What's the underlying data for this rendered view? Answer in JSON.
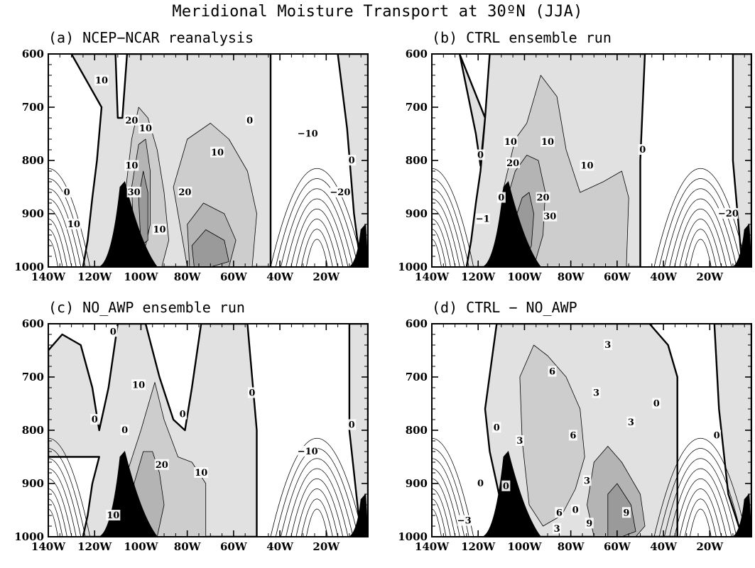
{
  "title": "Meridional Moisture Transport at 30ºN (JJA)",
  "chart_data": [
    {
      "type": "heatmap",
      "panel": "a",
      "title": "(a) NCEP−NCAR reanalysis",
      "x_ticks": [
        "140W",
        "120W",
        "100W",
        "80W",
        "60W",
        "40W",
        "20W"
      ],
      "y_ticks": [
        "600",
        "700",
        "800",
        "900",
        "1000"
      ],
      "xlim": [
        -140,
        -2
      ],
      "ylim": [
        1000,
        600
      ],
      "shaded_regions": [
        {
          "name": "positive-band-west",
          "level": 0,
          "x": [
            -130,
            -111,
            -110,
            -108,
            -106,
            -86,
            -44,
            -44,
            -125,
            -123,
            -121,
            -119,
            -117
          ],
          "y": [
            600,
            600,
            720,
            720,
            600,
            600,
            600,
            1000,
            1000,
            950,
            870,
            800,
            700
          ]
        },
        {
          "name": "core-1",
          "level": 1,
          "x": [
            -107,
            -104,
            -101,
            -97,
            -93,
            -90,
            -88,
            -91,
            -96,
            -101,
            -105
          ],
          "y": [
            870,
            760,
            700,
            720,
            780,
            860,
            950,
            1000,
            1000,
            1000,
            960
          ]
        },
        {
          "name": "core-2",
          "level": 2,
          "x": [
            -104,
            -101,
            -98,
            -96,
            -96,
            -99,
            -103
          ],
          "y": [
            850,
            770,
            760,
            820,
            920,
            980,
            960
          ]
        },
        {
          "name": "core-3",
          "level": 3,
          "x": [
            -101,
            -99,
            -97,
            -97,
            -100
          ],
          "y": [
            870,
            820,
            860,
            950,
            960
          ]
        },
        {
          "name": "lobe-1",
          "level": 1,
          "x": [
            -86,
            -80,
            -70,
            -62,
            -54,
            -50,
            -52,
            -66,
            -80
          ],
          "y": [
            850,
            760,
            730,
            760,
            820,
            900,
            1000,
            1000,
            1000
          ]
        },
        {
          "name": "lobe-2",
          "level": 2,
          "x": [
            -80,
            -73,
            -64,
            -59,
            -62,
            -72,
            -79
          ],
          "y": [
            920,
            880,
            900,
            950,
            1000,
            1000,
            1000
          ]
        },
        {
          "name": "lobe-3",
          "level": 3,
          "x": [
            -78,
            -72,
            -64,
            -62,
            -70,
            -77
          ],
          "y": [
            960,
            930,
            950,
            990,
            1000,
            1000
          ]
        },
        {
          "name": "positive-band-east",
          "level": 0,
          "x": [
            -15,
            -8,
            -4,
            -2,
            -2,
            -5,
            -8,
            -11
          ],
          "y": [
            600,
            600,
            600,
            600,
            1000,
            1000,
            900,
            740
          ]
        }
      ],
      "contour_labels": [
        {
          "text": "10",
          "x": -117,
          "y": 650
        },
        {
          "text": "20",
          "x": -104,
          "y": 725
        },
        {
          "text": "10",
          "x": -98,
          "y": 740
        },
        {
          "text": "10",
          "x": -104,
          "y": 810
        },
        {
          "text": "30",
          "x": -103,
          "y": 860
        },
        {
          "text": "10",
          "x": -92,
          "y": 930
        },
        {
          "text": "20",
          "x": -81,
          "y": 860
        },
        {
          "text": "10",
          "x": -67,
          "y": 785
        },
        {
          "text": "0",
          "x": -132,
          "y": 860
        },
        {
          "text": "10",
          "x": -129,
          "y": 920
        },
        {
          "text": "0",
          "x": -53,
          "y": 725
        },
        {
          "text": "−10",
          "x": -28,
          "y": 750
        },
        {
          "text": "−20",
          "x": -14,
          "y": 860
        },
        {
          "text": "0",
          "x": -9,
          "y": 800
        }
      ],
      "terrain": [
        {
          "x_range": [
            -118,
            -93
          ],
          "peak_x": -107,
          "peak_y": 840
        },
        {
          "x_range": [
            -10,
            -2
          ],
          "peak_x": -3,
          "peak_y": 920
        }
      ]
    },
    {
      "type": "heatmap",
      "panel": "b",
      "title": "(b) CTRL ensemble run",
      "x_ticks": [
        "140W",
        "120W",
        "100W",
        "80W",
        "60W",
        "40W",
        "20W"
      ],
      "y_ticks": [
        "600",
        "700",
        "800",
        "900",
        "1000"
      ],
      "xlim": [
        -140,
        -2
      ],
      "ylim": [
        1000,
        600
      ],
      "shaded_regions": [
        {
          "name": "positive-band-west",
          "level": 0,
          "x": [
            -128,
            -121,
            -119,
            -117,
            -115,
            -113,
            -112,
            -48,
            -50,
            -50,
            -125,
            -123,
            -121,
            -119,
            -117
          ],
          "y": [
            600,
            750,
            810,
            720,
            600,
            600,
            600,
            600,
            800,
            1000,
            1000,
            950,
            880,
            820,
            720
          ]
        },
        {
          "name": "core-1",
          "level": 1,
          "x": [
            -110,
            -104,
            -99,
            -93,
            -86,
            -82,
            -76,
            -66,
            -58,
            -55,
            -56,
            -70,
            -85,
            -95,
            -106
          ],
          "y": [
            870,
            760,
            730,
            640,
            680,
            780,
            860,
            840,
            820,
            870,
            1000,
            1000,
            1000,
            1000,
            980
          ]
        },
        {
          "name": "core-2",
          "level": 2,
          "x": [
            -108,
            -104,
            -99,
            -94,
            -91,
            -92,
            -96,
            -101,
            -106
          ],
          "y": [
            880,
            820,
            790,
            800,
            860,
            940,
            1000,
            1000,
            980
          ]
        },
        {
          "name": "core-3",
          "level": 3,
          "x": [
            -104,
            -101,
            -98,
            -96,
            -97,
            -100,
            -103
          ],
          "y": [
            910,
            870,
            860,
            900,
            960,
            990,
            980
          ]
        },
        {
          "name": "positive-band-east",
          "level": 0,
          "x": [
            -10,
            -5,
            -2,
            -2,
            -6,
            -10
          ],
          "y": [
            600,
            600,
            600,
            1000,
            1000,
            800
          ]
        }
      ],
      "contour_labels": [
        {
          "text": "0",
          "x": -119,
          "y": 790
        },
        {
          "text": "10",
          "x": -106,
          "y": 765
        },
        {
          "text": "20",
          "x": -105,
          "y": 805
        },
        {
          "text": "10",
          "x": -90,
          "y": 765
        },
        {
          "text": "10",
          "x": -73,
          "y": 810
        },
        {
          "text": "20",
          "x": -92,
          "y": 870
        },
        {
          "text": "30",
          "x": -89,
          "y": 905
        },
        {
          "text": "0",
          "x": -110,
          "y": 870
        },
        {
          "text": "−1",
          "x": -118,
          "y": 910
        },
        {
          "text": "0",
          "x": -49,
          "y": 780
        },
        {
          "text": "−20",
          "x": -12,
          "y": 900
        }
      ],
      "terrain": [
        {
          "x_range": [
            -118,
            -93
          ],
          "peak_x": -107,
          "peak_y": 840
        },
        {
          "x_range": [
            -10,
            -2
          ],
          "peak_x": -3,
          "peak_y": 920
        }
      ]
    },
    {
      "type": "heatmap",
      "panel": "c",
      "title": "(c) NO_AWP ensemble run",
      "x_ticks": [
        "140W",
        "120W",
        "100W",
        "80W",
        "60W",
        "40W",
        "20W"
      ],
      "y_ticks": [
        "600",
        "700",
        "800",
        "900",
        "1000"
      ],
      "xlim": [
        -140,
        -2
      ],
      "ylim": [
        1000,
        600
      ],
      "shaded_regions": [
        {
          "name": "positive-band-west",
          "level": 0,
          "x": [
            -140,
            -134,
            -126,
            -121,
            -118,
            -114,
            -110,
            -104,
            -98,
            -92,
            -86,
            -81,
            -78,
            -74,
            -66,
            -54,
            -50,
            -50,
            -125,
            -123,
            -121,
            -118,
            -140
          ],
          "y": [
            650,
            620,
            640,
            720,
            800,
            720,
            600,
            600,
            600,
            700,
            780,
            800,
            720,
            600,
            600,
            600,
            800,
            1000,
            1000,
            960,
            900,
            850,
            850
          ]
        },
        {
          "name": "core-1",
          "level": 1,
          "x": [
            -106,
            -100,
            -94,
            -90,
            -84,
            -78,
            -72,
            -72,
            -76,
            -84,
            -92,
            -100,
            -105
          ],
          "y": [
            880,
            800,
            710,
            780,
            850,
            860,
            900,
            1000,
            1000,
            1000,
            1000,
            1000,
            990
          ]
        },
        {
          "name": "core-2",
          "level": 2,
          "x": [
            -103,
            -99,
            -95,
            -92,
            -90,
            -93,
            -98,
            -102
          ],
          "y": [
            900,
            840,
            840,
            880,
            940,
            1000,
            1000,
            990
          ]
        },
        {
          "name": "positive-band-east",
          "level": 0,
          "x": [
            -10,
            -6,
            -2,
            -2,
            -5,
            -10
          ],
          "y": [
            600,
            600,
            600,
            1000,
            1000,
            800
          ]
        }
      ],
      "contour_labels": [
        {
          "text": "0",
          "x": -112,
          "y": 615
        },
        {
          "text": "10",
          "x": -101,
          "y": 715
        },
        {
          "text": "0",
          "x": -82,
          "y": 770
        },
        {
          "text": "0",
          "x": -120,
          "y": 780
        },
        {
          "text": "0",
          "x": -107,
          "y": 800
        },
        {
          "text": "20",
          "x": -91,
          "y": 865
        },
        {
          "text": "10",
          "x": -74,
          "y": 880
        },
        {
          "text": "0",
          "x": -52,
          "y": 730
        },
        {
          "text": "−10",
          "x": -28,
          "y": 840
        },
        {
          "text": "0",
          "x": -9,
          "y": 790
        },
        {
          "text": "10",
          "x": -112,
          "y": 960
        }
      ],
      "terrain": [
        {
          "x_range": [
            -118,
            -93
          ],
          "peak_x": -107,
          "peak_y": 840
        },
        {
          "x_range": [
            -10,
            -2
          ],
          "peak_x": -3,
          "peak_y": 920
        }
      ]
    },
    {
      "type": "heatmap",
      "panel": "d",
      "title": "(d) CTRL − NO_AWP",
      "x_ticks": [
        "140W",
        "120W",
        "100W",
        "80W",
        "60W",
        "40W",
        "20W"
      ],
      "y_ticks": [
        "600",
        "700",
        "800",
        "900",
        "1000"
      ],
      "xlim": [
        -140,
        -2
      ],
      "ylim": [
        1000,
        600
      ],
      "shaded_regions": [
        {
          "name": "positive-band",
          "level": 0,
          "x": [
            -112,
            -100,
            -60,
            -46,
            -38,
            -34,
            -34,
            -40,
            -48,
            -56,
            -66,
            -74,
            -82,
            -90,
            -96,
            -103,
            -108,
            -112,
            -115,
            -117
          ],
          "y": [
            600,
            600,
            600,
            600,
            640,
            700,
            1000,
            1000,
            1000,
            1000,
            1000,
            1000,
            1000,
            1000,
            1000,
            1000,
            980,
            900,
            840,
            760
          ]
        },
        {
          "name": "mid-1",
          "level": 1,
          "x": [
            -102,
            -96,
            -90,
            -82,
            -76,
            -74,
            -78,
            -84,
            -92,
            -98,
            -101
          ],
          "y": [
            700,
            640,
            660,
            700,
            760,
            850,
            910,
            960,
            980,
            940,
            820
          ]
        },
        {
          "name": "mid-2",
          "level": 2,
          "x": [
            -70,
            -64,
            -58,
            -50,
            -48,
            -52,
            -62,
            -70,
            -73
          ],
          "y": [
            860,
            830,
            860,
            920,
            980,
            1000,
            1000,
            1000,
            940
          ]
        },
        {
          "name": "mid-3",
          "level": 3,
          "x": [
            -64,
            -60,
            -54,
            -52,
            -58,
            -64
          ],
          "y": [
            920,
            900,
            940,
            990,
            1000,
            1000
          ]
        },
        {
          "name": "positive-band-east",
          "level": 0,
          "x": [
            -18,
            -8,
            -2,
            -2,
            -6,
            -12,
            -16
          ],
          "y": [
            600,
            600,
            600,
            1000,
            1000,
            920,
            760
          ]
        }
      ],
      "contour_labels": [
        {
          "text": "3",
          "x": -64,
          "y": 640
        },
        {
          "text": "6",
          "x": -88,
          "y": 690
        },
        {
          "text": "3",
          "x": -69,
          "y": 730
        },
        {
          "text": "0",
          "x": -43,
          "y": 750
        },
        {
          "text": "6",
          "x": -79,
          "y": 810
        },
        {
          "text": "3",
          "x": -54,
          "y": 785
        },
        {
          "text": "0",
          "x": -17,
          "y": 810
        },
        {
          "text": "0",
          "x": -112,
          "y": 795
        },
        {
          "text": "3",
          "x": -102,
          "y": 820
        },
        {
          "text": "3",
          "x": -73,
          "y": 895
        },
        {
          "text": "0",
          "x": -119,
          "y": 900
        },
        {
          "text": "0",
          "x": -108,
          "y": 905
        },
        {
          "text": "6",
          "x": -85,
          "y": 955
        },
        {
          "text": "3",
          "x": -86,
          "y": 985
        },
        {
          "text": "0",
          "x": -78,
          "y": 950
        },
        {
          "text": "9",
          "x": -72,
          "y": 975
        },
        {
          "text": "9",
          "x": -56,
          "y": 955
        },
        {
          "text": "−3",
          "x": -126,
          "y": 970
        }
      ],
      "terrain": [
        {
          "x_range": [
            -118,
            -93
          ],
          "peak_x": -107,
          "peak_y": 840
        },
        {
          "x_range": [
            -10,
            -2
          ],
          "peak_x": -3,
          "peak_y": 920
        }
      ]
    }
  ],
  "colors": {
    "level0": "#e1e1e1",
    "level1": "#cdcdcd",
    "level2": "#b4b4b4",
    "level3": "#9a9a9a",
    "terrain": "#000000",
    "background": "#ffffff"
  }
}
